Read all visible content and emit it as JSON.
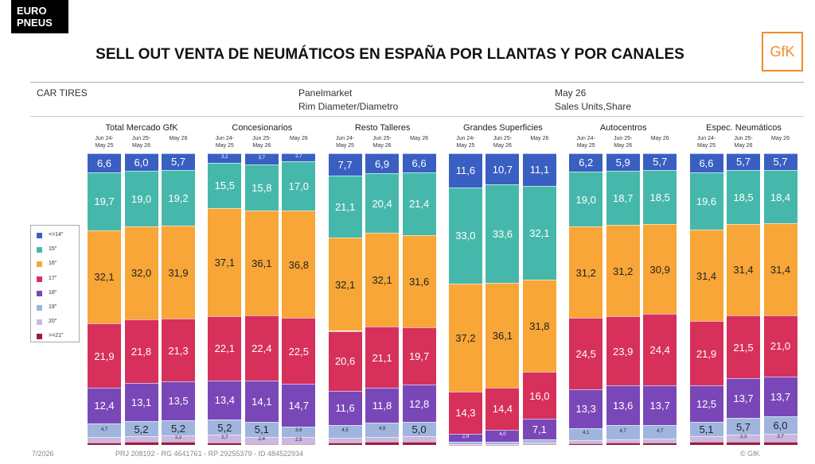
{
  "header": {
    "logo_lines": [
      "EURO",
      "PNEUS"
    ],
    "title": "SELL OUT VENTA DE NEUMÁTICOS EN ESPAÑA POR LLANTAS Y POR CANALES",
    "brand": "GfK",
    "table_header": {
      "segment": "CAR TIRES",
      "source": "Panelmarket",
      "dimension": "Rim Diameter/Diametro",
      "period": "May 26",
      "measure": "Sales Units,Share"
    }
  },
  "footer": {
    "page": "7/2026",
    "ids": "PRJ 208192 - RG 4641761 - RP 29255379 - ID 484522934",
    "copyright": "© GfK"
  },
  "chart_data": {
    "type": "bar",
    "stacked": true,
    "ylim": [
      0,
      100
    ],
    "legend": "left",
    "groups": [
      "Total Mercado GfK",
      "Concesionarios",
      "Resto Talleres",
      "Grandes Superficies",
      "Autocentros",
      "Espec. Neumáticos"
    ],
    "categories": [
      "Jun 24-\nMay 25",
      "Jun 25-\nMay 26",
      "May 26",
      "Jun 24-\nMay 25",
      "Jun 25-\nMay 26",
      "May 26",
      "Jun 24-\nMay 25",
      "Jun 25-\nMay 26",
      "May 26",
      "Jun 24-\nMay 25",
      "Jun 25-\nMay 26",
      "May 26",
      "Jun 24-\nMay 25",
      "Jun 25-\nMay 26",
      "May 26",
      "Jun 24-\nMay 25",
      "Jun 25-\nMay 26",
      "May 26"
    ],
    "series": [
      {
        "name": "<=14\"",
        "color": "#3a5fc2",
        "values": [
          6.6,
          6.0,
          5.7,
          3.2,
          3.7,
          2.7,
          7.7,
          6.9,
          6.6,
          11.6,
          10.7,
          11.1,
          6.2,
          5.9,
          5.7,
          6.6,
          5.7,
          5.7
        ],
        "value_labels": [
          "6,6",
          "6,0",
          "5,7",
          "3,2",
          "3,7",
          "2,7",
          "7,7",
          "6,9",
          "6,6",
          "11,6",
          "10,7",
          "11,1",
          "6,2",
          "5,9",
          "5,7",
          "6,6",
          "5,7",
          "5,7"
        ]
      },
      {
        "name": "15\"",
        "color": "#46b8ab",
        "values": [
          19.7,
          19.0,
          19.2,
          15.5,
          15.8,
          17.0,
          21.1,
          20.4,
          21.4,
          33.0,
          33.6,
          32.1,
          19.0,
          18.7,
          18.5,
          19.6,
          18.5,
          18.4
        ],
        "value_labels": [
          "19,7",
          "19,0",
          "19,2",
          "15,5",
          "15,8",
          "17,0",
          "21,1",
          "20,4",
          "21,4",
          "33,0",
          "33,6",
          "32,1",
          "19,0",
          "18,7",
          "18,5",
          "19,6",
          "18,5",
          "18,4"
        ]
      },
      {
        "name": "16\"",
        "color": "#f7a637",
        "values": [
          32.1,
          32.0,
          31.9,
          37.1,
          36.1,
          36.8,
          32.1,
          32.1,
          31.6,
          37.2,
          36.1,
          31.8,
          31.2,
          31.2,
          30.9,
          31.4,
          31.4,
          31.4
        ],
        "value_labels": [
          "32,1",
          "32,0",
          "31,9",
          "37,1",
          "36,1",
          "36,8",
          "32,1",
          "32,1",
          "31,6",
          "37,2",
          "36,1",
          "31,8",
          "31,2",
          "31,2",
          "30,9",
          "31,4",
          "31,4",
          "31,4"
        ]
      },
      {
        "name": "17\"",
        "color": "#d7305b",
        "values": [
          21.9,
          21.8,
          21.3,
          22.1,
          22.4,
          22.5,
          20.6,
          21.1,
          19.7,
          14.3,
          14.4,
          16.0,
          24.5,
          23.9,
          24.4,
          21.9,
          21.5,
          21.0
        ],
        "value_labels": [
          "21,9",
          "21,8",
          "21,3",
          "22,1",
          "22,4",
          "22,5",
          "20,6",
          "21,1",
          "19,7",
          "14,3",
          "14,4",
          "16,0",
          "24,5",
          "23,9",
          "24,4",
          "21,9",
          "21,5",
          "21,0"
        ]
      },
      {
        "name": "18\"",
        "color": "#7a47b8",
        "values": [
          12.4,
          13.1,
          13.5,
          13.4,
          14.1,
          14.7,
          11.6,
          11.8,
          12.8,
          2.9,
          4.0,
          7.1,
          13.3,
          13.6,
          13.7,
          12.5,
          13.7,
          13.7
        ],
        "value_labels": [
          "12,4",
          "13,1",
          "13,5",
          "13,4",
          "14,1",
          "14,7",
          "11,6",
          "11,8",
          "12,8",
          "2,9",
          "4,0",
          "7,1",
          "13,3",
          "13,6",
          "13,7",
          "12,5",
          "13,7",
          "13,7"
        ]
      },
      {
        "name": "19\"",
        "color": "#9fb5de",
        "values": [
          4.7,
          5.2,
          5.2,
          5.2,
          5.1,
          3.6,
          4.5,
          4.9,
          5.0,
          0.6,
          0.8,
          1.2,
          4.1,
          4.7,
          4.7,
          5.1,
          5.7,
          6.0
        ],
        "value_labels": [
          "4,7",
          "5,2",
          "5,2",
          "5,2",
          "5,1",
          "3,6",
          "4,5",
          "4,9",
          "5,0",
          null,
          null,
          null,
          "4,1",
          "4,7",
          "4,7",
          "5,1",
          "5,7",
          "6,0"
        ]
      },
      {
        "name": "20\"",
        "color": "#cbb7e2",
        "values": [
          1.7,
          1.8,
          2.2,
          2.7,
          2.4,
          2.5,
          1.6,
          1.8,
          1.9,
          0.3,
          0.3,
          0.5,
          1.1,
          1.3,
          1.4,
          1.9,
          2.3,
          2.7
        ],
        "value_labels": [
          null,
          null,
          "2,2",
          "2,7",
          "2,4",
          "2,5",
          null,
          null,
          null,
          null,
          null,
          null,
          null,
          null,
          null,
          null,
          "2,3",
          "2,7"
        ]
      },
      {
        "name": ">=21\"",
        "color": "#9b1c3e",
        "values": [
          0.9,
          1.1,
          1.0,
          0.8,
          0.4,
          0.2,
          0.8,
          1.0,
          1.0,
          0.1,
          0.1,
          0.2,
          0.6,
          0.7,
          0.7,
          1.0,
          1.2,
          1.1
        ]
      }
    ]
  }
}
